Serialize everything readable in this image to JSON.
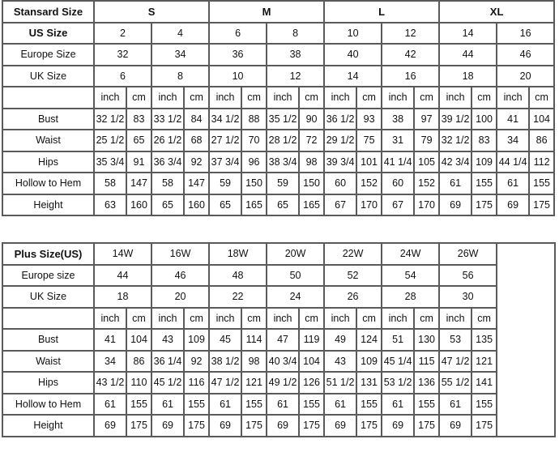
{
  "standard": {
    "header_label": "Stansard Size",
    "groups": [
      "S",
      "M",
      "L",
      "XL"
    ],
    "us_label": "US Size",
    "us": [
      "2",
      "4",
      "6",
      "8",
      "10",
      "12",
      "14",
      "16"
    ],
    "europe_label": "Europe Size",
    "europe": [
      "32",
      "34",
      "36",
      "38",
      "40",
      "42",
      "44",
      "46"
    ],
    "uk_label": "UK Size",
    "uk": [
      "6",
      "8",
      "10",
      "12",
      "14",
      "16",
      "18",
      "20"
    ],
    "unit_inch": "inch",
    "unit_cm": "cm",
    "measurements": [
      {
        "label": "Bust",
        "values": [
          "32 1/2",
          "83",
          "33 1/2",
          "84",
          "34 1/2",
          "88",
          "35 1/2",
          "90",
          "36 1/2",
          "93",
          "38",
          "97",
          "39 1/2",
          "100",
          "41",
          "104"
        ]
      },
      {
        "label": "Waist",
        "values": [
          "25 1/2",
          "65",
          "26 1/2",
          "68",
          "27 1/2",
          "70",
          "28 1/2",
          "72",
          "29 1/2",
          "75",
          "31",
          "79",
          "32 1/2",
          "83",
          "34",
          "86"
        ]
      },
      {
        "label": "Hips",
        "values": [
          "35 3/4",
          "91",
          "36 3/4",
          "92",
          "37 3/4",
          "96",
          "38 3/4",
          "98",
          "39 3/4",
          "101",
          "41 1/4",
          "105",
          "42 3/4",
          "109",
          "44 1/4",
          "112"
        ]
      },
      {
        "label": "Hollow to Hem",
        "values": [
          "58",
          "147",
          "58",
          "147",
          "59",
          "150",
          "59",
          "150",
          "60",
          "152",
          "60",
          "152",
          "61",
          "155",
          "61",
          "155"
        ]
      },
      {
        "label": "Height",
        "values": [
          "63",
          "160",
          "65",
          "160",
          "65",
          "165",
          "65",
          "165",
          "67",
          "170",
          "67",
          "170",
          "69",
          "175",
          "69",
          "175"
        ]
      }
    ]
  },
  "plus": {
    "header_label": "Plus Size(US)",
    "sizes": [
      "14W",
      "16W",
      "18W",
      "20W",
      "22W",
      "24W",
      "26W"
    ],
    "europe_label": "Europe size",
    "europe": [
      "44",
      "46",
      "48",
      "50",
      "52",
      "54",
      "56"
    ],
    "uk_label": "UK Size",
    "uk": [
      "18",
      "20",
      "22",
      "24",
      "26",
      "28",
      "30"
    ],
    "unit_inch": "inch",
    "unit_cm": "cm",
    "measurements": [
      {
        "label": "Bust",
        "values": [
          "41",
          "104",
          "43",
          "109",
          "45",
          "114",
          "47",
          "119",
          "49",
          "124",
          "51",
          "130",
          "53",
          "135"
        ]
      },
      {
        "label": "Waist",
        "values": [
          "34",
          "86",
          "36 1/4",
          "92",
          "38 1/2",
          "98",
          "40 3/4",
          "104",
          "43",
          "109",
          "45 1/4",
          "115",
          "47 1/2",
          "121"
        ]
      },
      {
        "label": "Hips",
        "values": [
          "43 1/2",
          "110",
          "45 1/2",
          "116",
          "47 1/2",
          "121",
          "49 1/2",
          "126",
          "51 1/2",
          "131",
          "53 1/2",
          "136",
          "55 1/2",
          "141"
        ]
      },
      {
        "label": "Hollow to Hem",
        "values": [
          "61",
          "155",
          "61",
          "155",
          "61",
          "155",
          "61",
          "155",
          "61",
          "155",
          "61",
          "155",
          "61",
          "155"
        ]
      },
      {
        "label": "Height",
        "values": [
          "69",
          "175",
          "69",
          "175",
          "69",
          "175",
          "69",
          "175",
          "69",
          "175",
          "69",
          "175",
          "69",
          "175"
        ]
      }
    ]
  }
}
